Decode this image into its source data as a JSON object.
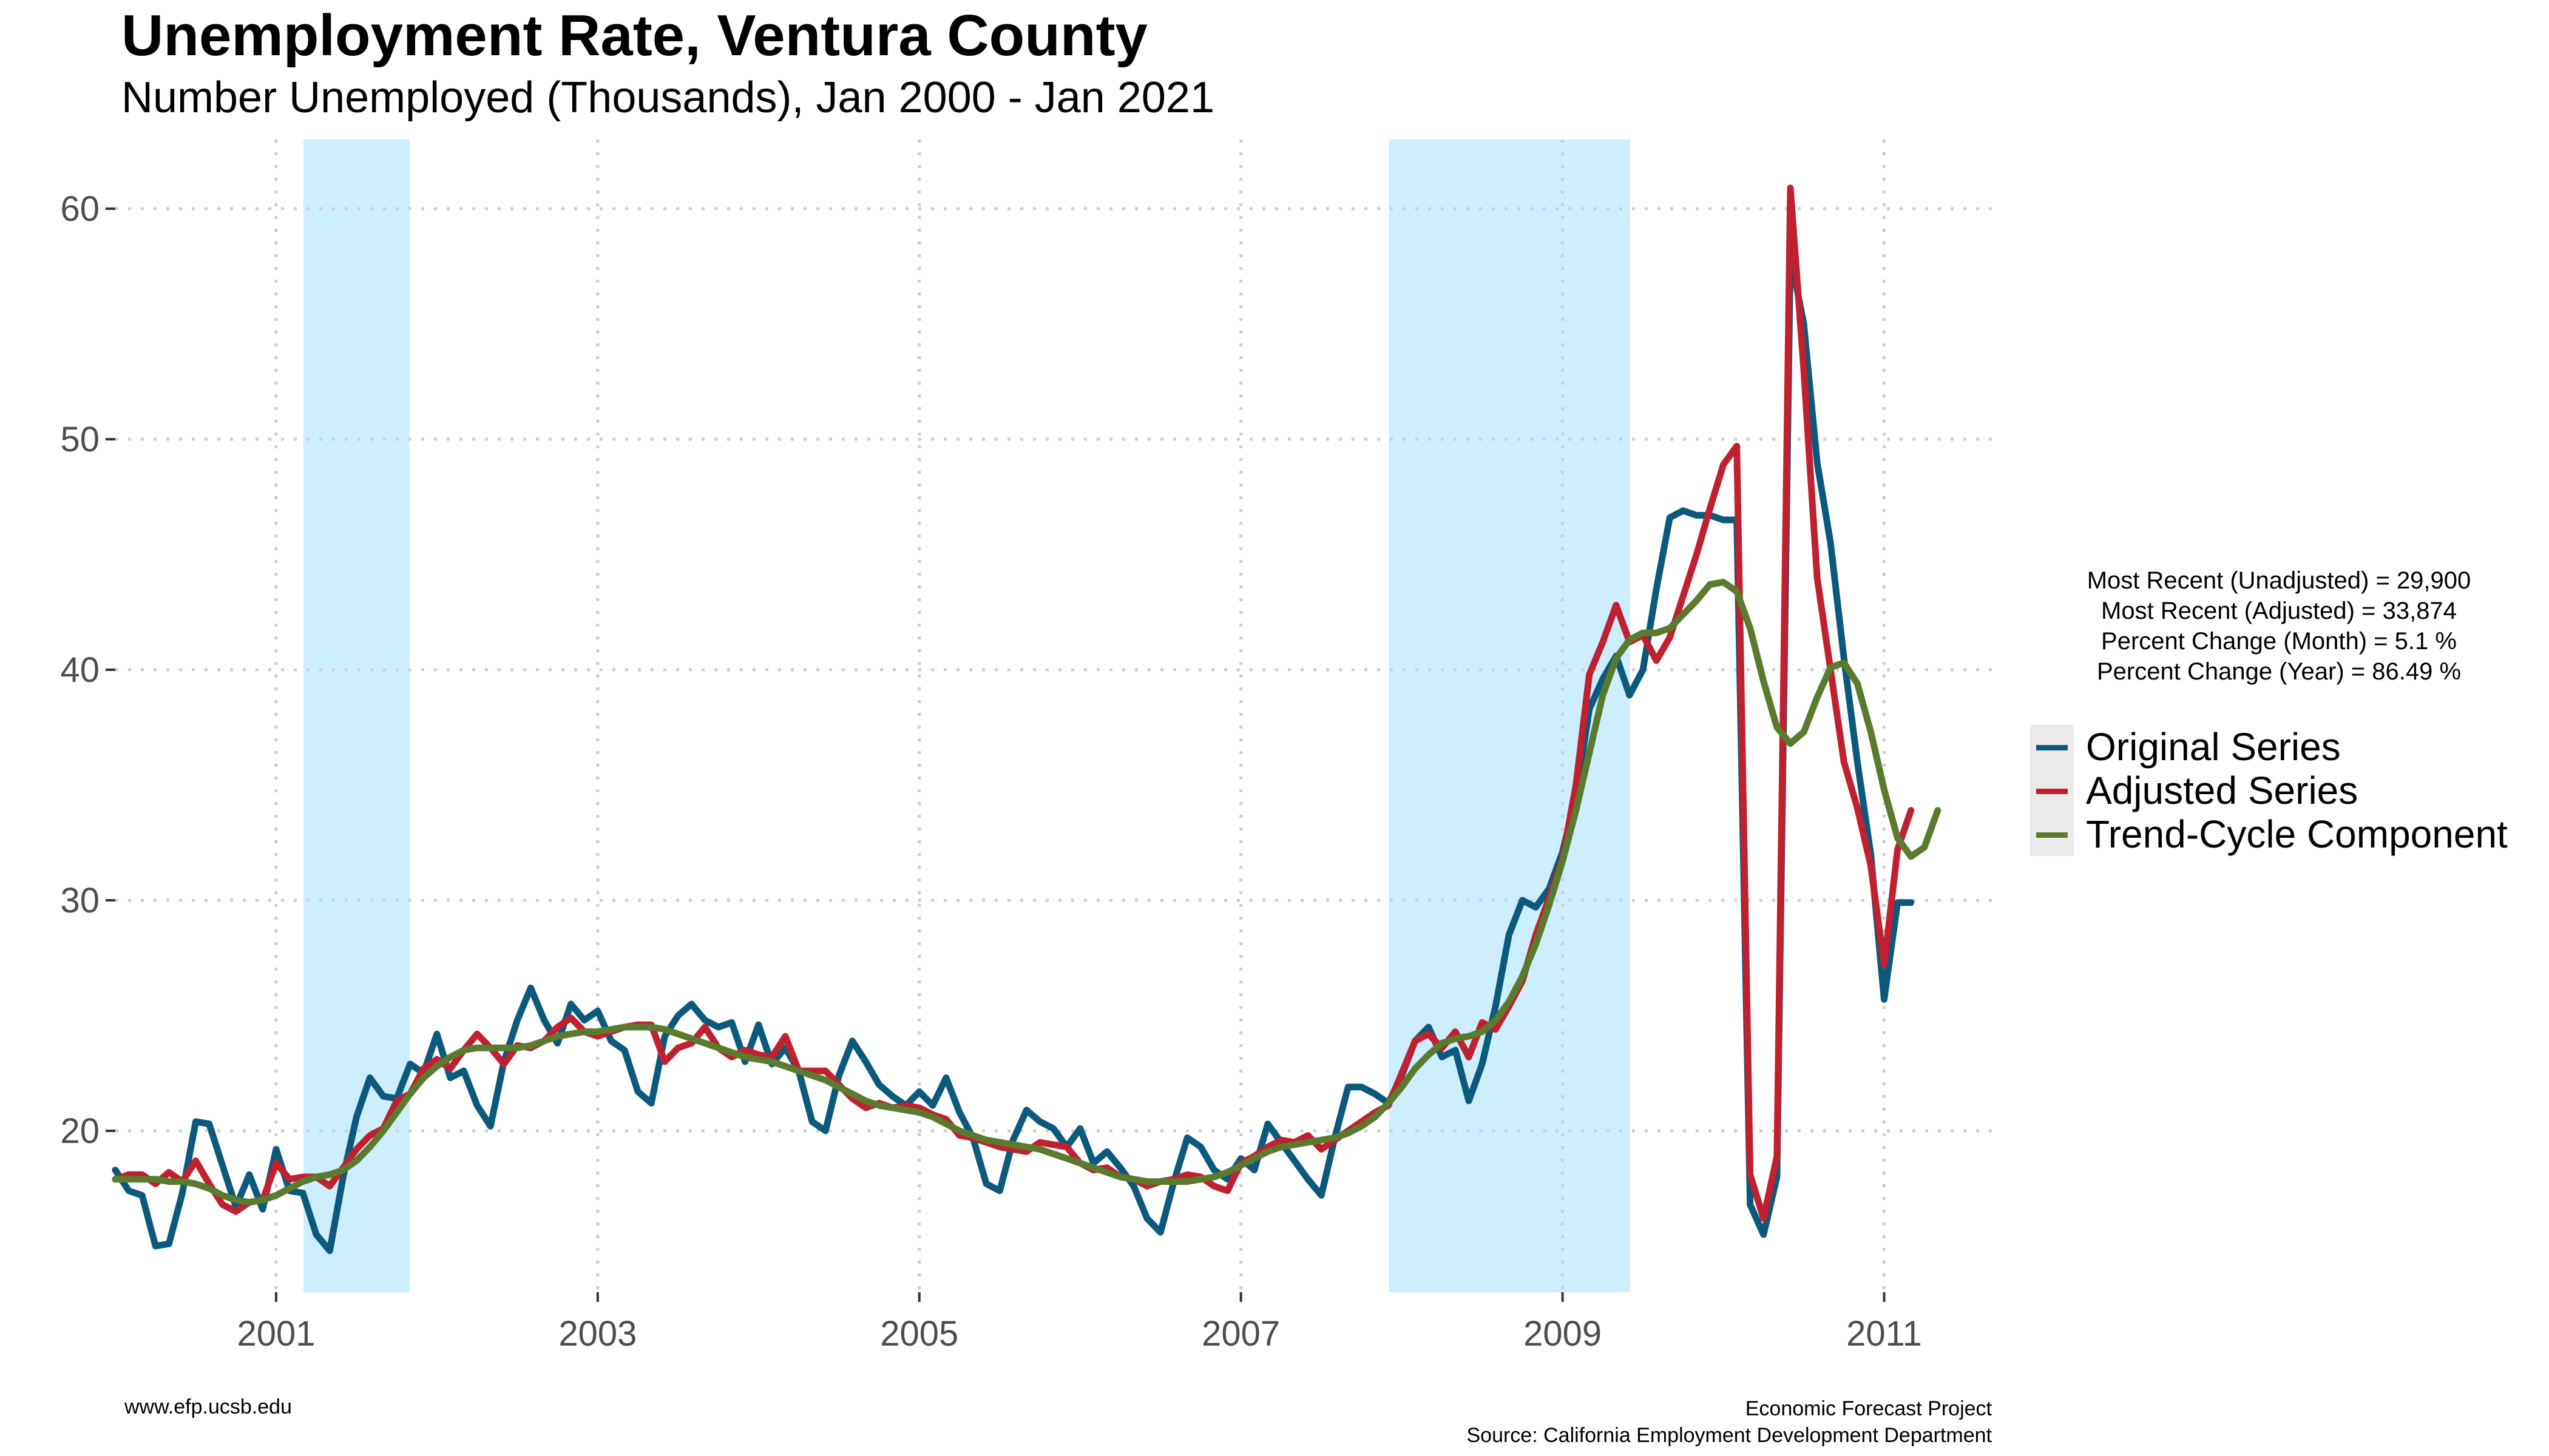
{
  "title": "Unemployment Rate, Ventura County",
  "subtitle": "Number Unemployed (Thousands), Jan 2000 - Jan 2021",
  "stats": [
    "Most Recent (Unadjusted) = 29,900",
    "Most Recent (Adjusted) = 33,874",
    "Percent Change (Month) = 5.1 %",
    "Percent Change (Year) = 86.49 %"
  ],
  "legend": [
    {
      "label": "Original Series",
      "color": "#0b5a7d"
    },
    {
      "label": "Adjusted Series",
      "color": "#c0202f"
    },
    {
      "label": "Trend-Cycle Component",
      "color": "#5a7a2e"
    }
  ],
  "footer": {
    "left": "www.efp.ucsb.edu",
    "right_line1": "Economic Forecast Project",
    "right_line2": "Source: California Employment Development Department"
  },
  "chart_data": {
    "type": "line",
    "x_start": "2000-01",
    "x_step": "month",
    "x_ticks": [
      "2001",
      "2003",
      "2005",
      "2007",
      "2009",
      "2011"
    ],
    "y_ticks": [
      20,
      30,
      40,
      50,
      60
    ],
    "ylim": [
      13,
      63
    ],
    "grid": true,
    "legend_position": "right",
    "shaded_periods": [
      {
        "start": 2001.17,
        "end": 2001.83
      },
      {
        "start": 2007.92,
        "end": 2009.42
      }
    ],
    "series": [
      {
        "name": "Original Series",
        "color": "#0b5a7d",
        "values": [
          18.3,
          17.4,
          17.2,
          15.0,
          15.1,
          17.3,
          20.4,
          20.3,
          18.5,
          16.7,
          18.1,
          16.6,
          19.2,
          17.4,
          17.3,
          15.5,
          14.8,
          18.0,
          20.6,
          22.3,
          21.5,
          21.4,
          22.9,
          22.5,
          24.2,
          22.3,
          22.6,
          21.1,
          20.2,
          23.0,
          24.8,
          26.2,
          24.8,
          23.8,
          25.5,
          24.8,
          25.2,
          23.9,
          23.5,
          21.7,
          21.2,
          24.1,
          25.0,
          25.5,
          24.8,
          24.5,
          24.7,
          23.0,
          24.6,
          22.9,
          23.6,
          22.6,
          20.4,
          20.0,
          22.4,
          23.9,
          23.0,
          22.0,
          21.5,
          21.1,
          21.7,
          21.1,
          22.3,
          20.8,
          19.7,
          17.7,
          17.4,
          19.6,
          20.9,
          20.4,
          20.1,
          19.3,
          20.1,
          18.6,
          19.1,
          18.4,
          17.6,
          16.2,
          15.6,
          17.8,
          19.7,
          19.3,
          18.3,
          17.9,
          18.8,
          18.3,
          20.3,
          19.5,
          18.7,
          17.9,
          17.2,
          19.7,
          21.9,
          21.9,
          21.6,
          21.2,
          22.4,
          23.9,
          24.5,
          23.2,
          23.5,
          21.3,
          22.9,
          25.4,
          28.5,
          30.0,
          29.7,
          30.5,
          32.1,
          34.5,
          38.3,
          39.6,
          40.6,
          38.9,
          40.0,
          43.5,
          46.6,
          46.9,
          46.7,
          46.7,
          46.5,
          46.5,
          16.8,
          15.5,
          18.0,
          58.0,
          55.0,
          49.0,
          45.5,
          40.5,
          36.0,
          32.0,
          25.7,
          29.9,
          29.9
        ]
      },
      {
        "name": "Adjusted Series",
        "color": "#c0202f",
        "values": [
          17.9,
          18.1,
          18.1,
          17.7,
          18.2,
          17.8,
          18.7,
          17.7,
          16.8,
          16.5,
          16.9,
          17.0,
          18.6,
          17.9,
          18.0,
          18.0,
          17.6,
          18.4,
          19.2,
          19.8,
          20.1,
          21.3,
          21.6,
          22.7,
          23.1,
          22.7,
          23.5,
          24.2,
          23.6,
          22.9,
          23.7,
          23.6,
          23.9,
          24.5,
          24.9,
          24.3,
          24.1,
          24.3,
          24.5,
          24.6,
          24.6,
          23.0,
          23.6,
          23.8,
          24.5,
          23.6,
          23.2,
          23.5,
          23.3,
          23.2,
          24.1,
          22.6,
          22.6,
          22.6,
          22.0,
          21.4,
          21.0,
          21.2,
          21.0,
          21.1,
          21.0,
          20.7,
          20.5,
          19.8,
          19.7,
          19.5,
          19.3,
          19.2,
          19.1,
          19.5,
          19.4,
          19.3,
          18.6,
          18.3,
          18.4,
          18.0,
          17.9,
          17.6,
          17.8,
          17.9,
          18.1,
          18.0,
          17.6,
          17.4,
          18.6,
          18.9,
          19.3,
          19.6,
          19.5,
          19.8,
          19.2,
          19.6,
          20.0,
          20.4,
          20.8,
          21.1,
          22.5,
          23.9,
          24.2,
          23.6,
          24.3,
          23.2,
          24.7,
          24.4,
          25.4,
          26.5,
          28.5,
          30.1,
          31.8,
          35.0,
          39.8,
          41.2,
          42.8,
          41.2,
          41.5,
          40.4,
          41.4,
          43.2,
          45.0,
          47.0,
          48.9,
          49.7,
          18.1,
          16.2,
          18.9,
          60.9,
          53.0,
          44.0,
          40.0,
          36.0,
          34.0,
          31.5,
          27.2,
          32.2,
          33.9
        ]
      },
      {
        "name": "Trend-Cycle Component",
        "color": "#5a7a2e",
        "values": [
          17.9,
          17.9,
          17.9,
          17.9,
          17.8,
          17.8,
          17.7,
          17.5,
          17.2,
          17.0,
          16.9,
          17.0,
          17.2,
          17.5,
          17.8,
          18.0,
          18.1,
          18.3,
          18.7,
          19.3,
          20.0,
          20.8,
          21.6,
          22.3,
          22.8,
          23.2,
          23.5,
          23.6,
          23.6,
          23.6,
          23.6,
          23.7,
          23.9,
          24.1,
          24.2,
          24.3,
          24.3,
          24.4,
          24.5,
          24.5,
          24.5,
          24.4,
          24.2,
          24.0,
          23.8,
          23.6,
          23.4,
          23.2,
          23.1,
          23.0,
          22.8,
          22.6,
          22.4,
          22.2,
          21.9,
          21.6,
          21.3,
          21.1,
          21.0,
          20.9,
          20.8,
          20.6,
          20.3,
          20.0,
          19.8,
          19.6,
          19.5,
          19.4,
          19.3,
          19.2,
          19.0,
          18.8,
          18.6,
          18.4,
          18.2,
          18.0,
          17.9,
          17.8,
          17.8,
          17.8,
          17.8,
          17.9,
          18.0,
          18.2,
          18.5,
          18.8,
          19.1,
          19.3,
          19.4,
          19.5,
          19.6,
          19.7,
          19.9,
          20.2,
          20.6,
          21.2,
          21.9,
          22.7,
          23.3,
          23.8,
          24.0,
          24.1,
          24.3,
          24.8,
          25.6,
          26.7,
          28.1,
          29.8,
          31.7,
          33.9,
          36.4,
          38.9,
          40.5,
          41.3,
          41.6,
          41.6,
          41.8,
          42.4,
          43.0,
          43.7,
          43.8,
          43.4,
          41.8,
          39.5,
          37.5,
          36.8,
          37.3,
          38.8,
          40.1,
          40.3,
          39.4,
          37.3,
          34.8,
          32.7,
          31.9,
          32.3,
          33.9
        ]
      }
    ]
  }
}
